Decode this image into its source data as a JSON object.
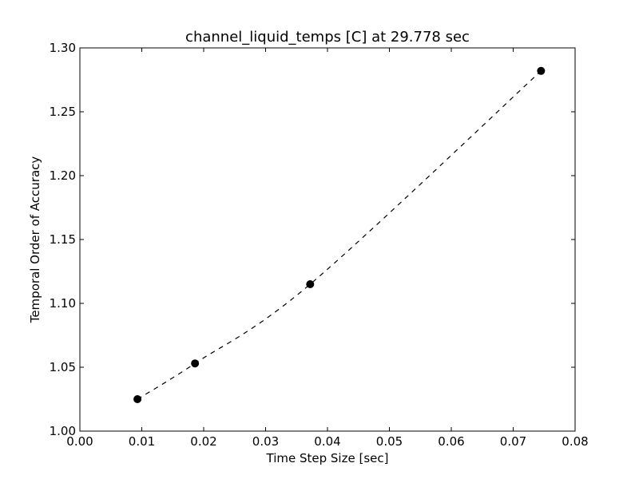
{
  "chart_data": {
    "type": "line",
    "title": "channel_liquid_temps [C] at 29.778 sec",
    "xlabel": "Time Step Size [sec]",
    "ylabel": "Temporal Order of Accuracy",
    "xlim": [
      0.0,
      0.08
    ],
    "ylim": [
      1.0,
      1.3
    ],
    "xticks": [
      "0.00",
      "0.01",
      "0.02",
      "0.03",
      "0.04",
      "0.05",
      "0.06",
      "0.07",
      "0.08"
    ],
    "yticks": [
      "1.00",
      "1.05",
      "1.10",
      "1.15",
      "1.20",
      "1.25",
      "1.30"
    ],
    "grid": false,
    "legend": "none",
    "series": [
      {
        "x": [
          0.0093,
          0.0186,
          0.0372,
          0.0745
        ],
        "y": [
          1.025,
          1.053,
          1.115,
          1.282
        ],
        "line_style": "dashed",
        "marker": "circle",
        "color": "#000000"
      }
    ]
  }
}
